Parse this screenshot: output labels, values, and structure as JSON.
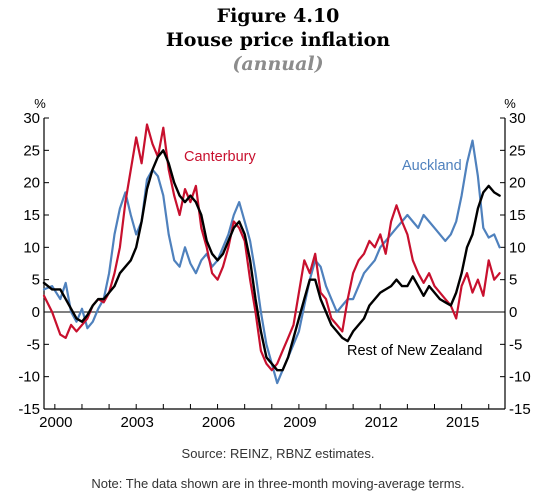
{
  "figure": {
    "number": "Figure 4.10",
    "title": "House price inflation",
    "subtitle": "(annual)"
  },
  "source": "Source: REINZ, RBNZ estimates.",
  "note": "Note: The data shown are in three-month moving-average terms.",
  "chart_data": {
    "type": "line",
    "title": "House price inflation",
    "subtitle": "(annual)",
    "ylabel_left": "%",
    "ylabel_right": "%",
    "ylim": [
      -15,
      30
    ],
    "yticks": [
      -15,
      -10,
      -5,
      0,
      5,
      10,
      15,
      20,
      25,
      30
    ],
    "xlim": [
      2000,
      2016.6
    ],
    "xticks": [
      2000,
      2003,
      2006,
      2009,
      2012,
      2015
    ],
    "xtick_labels": [
      "2000",
      "2003",
      "2006",
      "2009",
      "2012",
      "2015"
    ],
    "grid": false,
    "zero_line": true,
    "series": [
      {
        "name": "Auckland",
        "color": "#4f81bd",
        "x": [
          1999.6,
          1999.9,
          2000.2,
          2000.4,
          2000.6,
          2000.8,
          2001.0,
          2001.2,
          2001.4,
          2001.6,
          2001.8,
          2002.0,
          2002.2,
          2002.4,
          2002.6,
          2002.8,
          2003.0,
          2003.2,
          2003.4,
          2003.6,
          2003.8,
          2004.0,
          2004.2,
          2004.4,
          2004.6,
          2004.8,
          2005.0,
          2005.2,
          2005.4,
          2005.6,
          2005.8,
          2006.0,
          2006.2,
          2006.4,
          2006.6,
          2006.8,
          2007.0,
          2007.2,
          2007.4,
          2007.6,
          2007.8,
          2008.0,
          2008.2,
          2008.4,
          2008.6,
          2008.8,
          2009.0,
          2009.2,
          2009.4,
          2009.6,
          2009.8,
          2010.0,
          2010.2,
          2010.4,
          2010.6,
          2010.8,
          2011.0,
          2011.2,
          2011.4,
          2011.6,
          2011.8,
          2012.0,
          2012.2,
          2012.4,
          2012.6,
          2012.8,
          2013.0,
          2013.2,
          2013.4,
          2013.6,
          2013.8,
          2014.0,
          2014.2,
          2014.4,
          2014.6,
          2014.8,
          2015.0,
          2015.2,
          2015.4,
          2015.6,
          2015.8,
          2016.0,
          2016.2,
          2016.4
        ],
        "values": [
          3.5,
          4.0,
          2.0,
          4.5,
          0.0,
          -1.5,
          0.5,
          -2.5,
          -1.5,
          0.5,
          2.0,
          6.0,
          12.0,
          16.0,
          18.5,
          15.0,
          12.0,
          14.0,
          20.5,
          22.0,
          21.0,
          18.0,
          12.0,
          8.0,
          7.0,
          10.0,
          7.5,
          6.0,
          8.0,
          9.0,
          7.0,
          8.0,
          10.0,
          12.0,
          15.0,
          17.0,
          14.0,
          11.0,
          6.0,
          0.0,
          -5.0,
          -8.0,
          -11.0,
          -9.0,
          -7.0,
          -5.0,
          -3.0,
          1.0,
          5.0,
          8.0,
          7.0,
          4.0,
          2.0,
          0.0,
          1.0,
          2.0,
          2.0,
          4.0,
          6.0,
          7.0,
          8.0,
          10.0,
          11.0,
          12.0,
          13.0,
          14.0,
          15.0,
          14.0,
          13.0,
          15.0,
          14.0,
          13.0,
          12.0,
          11.0,
          12.0,
          14.0,
          18.0,
          23.0,
          26.5,
          21.0,
          13.0,
          11.5,
          12.0,
          10.0
        ]
      },
      {
        "name": "Canterbury",
        "color": "#c8102e",
        "x": [
          1999.6,
          1999.9,
          2000.2,
          2000.4,
          2000.6,
          2000.8,
          2001.0,
          2001.2,
          2001.4,
          2001.6,
          2001.8,
          2002.0,
          2002.2,
          2002.4,
          2002.6,
          2002.8,
          2003.0,
          2003.2,
          2003.4,
          2003.6,
          2003.8,
          2004.0,
          2004.2,
          2004.4,
          2004.6,
          2004.8,
          2005.0,
          2005.2,
          2005.4,
          2005.6,
          2005.8,
          2006.0,
          2006.2,
          2006.4,
          2006.6,
          2006.8,
          2007.0,
          2007.2,
          2007.4,
          2007.6,
          2007.8,
          2008.0,
          2008.2,
          2008.4,
          2008.6,
          2008.8,
          2009.0,
          2009.2,
          2009.4,
          2009.6,
          2009.8,
          2010.0,
          2010.2,
          2010.4,
          2010.6,
          2010.8,
          2011.0,
          2011.2,
          2011.4,
          2011.6,
          2011.8,
          2012.0,
          2012.2,
          2012.4,
          2012.6,
          2012.8,
          2013.0,
          2013.2,
          2013.4,
          2013.6,
          2013.8,
          2014.0,
          2014.2,
          2014.4,
          2014.6,
          2014.8,
          2015.0,
          2015.2,
          2015.4,
          2015.6,
          2015.8,
          2016.0,
          2016.2,
          2016.4
        ],
        "values": [
          2.5,
          0.0,
          -3.5,
          -4.0,
          -2.0,
          -3.0,
          -2.0,
          -1.0,
          1.0,
          2.0,
          1.5,
          3.0,
          6.0,
          10.0,
          17.0,
          22.0,
          27.0,
          23.0,
          29.0,
          26.0,
          24.0,
          28.5,
          22.0,
          18.0,
          15.0,
          19.0,
          17.0,
          19.5,
          13.0,
          10.0,
          6.0,
          5.0,
          7.0,
          10.0,
          14.0,
          13.0,
          11.0,
          5.0,
          0.0,
          -6.0,
          -8.0,
          -9.0,
          -8.0,
          -6.0,
          -4.0,
          -2.0,
          3.0,
          8.0,
          6.0,
          9.0,
          3.0,
          2.0,
          -1.0,
          -2.0,
          -3.0,
          2.0,
          6.0,
          8.0,
          9.0,
          11.0,
          10.0,
          12.0,
          9.0,
          14.0,
          16.5,
          14.0,
          12.0,
          8.0,
          6.0,
          4.5,
          6.0,
          4.0,
          3.0,
          2.0,
          1.0,
          -1.0,
          4.0,
          6.0,
          3.0,
          5.0,
          2.5,
          8.0,
          5.0,
          6.0
        ]
      },
      {
        "name": "Rest of New Zealand",
        "color": "#000000",
        "x": [
          1999.6,
          1999.9,
          2000.2,
          2000.4,
          2000.6,
          2000.8,
          2001.0,
          2001.2,
          2001.4,
          2001.6,
          2001.8,
          2002.0,
          2002.2,
          2002.4,
          2002.6,
          2002.8,
          2003.0,
          2003.2,
          2003.4,
          2003.6,
          2003.8,
          2004.0,
          2004.2,
          2004.4,
          2004.6,
          2004.8,
          2005.0,
          2005.2,
          2005.4,
          2005.6,
          2005.8,
          2006.0,
          2006.2,
          2006.4,
          2006.6,
          2006.8,
          2007.0,
          2007.2,
          2007.4,
          2007.6,
          2007.8,
          2008.0,
          2008.2,
          2008.4,
          2008.6,
          2008.8,
          2009.0,
          2009.2,
          2009.4,
          2009.6,
          2009.8,
          2010.0,
          2010.2,
          2010.4,
          2010.6,
          2010.8,
          2011.0,
          2011.2,
          2011.4,
          2011.6,
          2011.8,
          2012.0,
          2012.2,
          2012.4,
          2012.6,
          2012.8,
          2013.0,
          2013.2,
          2013.4,
          2013.6,
          2013.8,
          2014.0,
          2014.2,
          2014.4,
          2014.6,
          2014.8,
          2015.0,
          2015.2,
          2015.4,
          2015.6,
          2015.8,
          2016.0,
          2016.2,
          2016.4
        ],
        "values": [
          4.5,
          3.5,
          3.5,
          2.0,
          0.5,
          -1.0,
          -1.5,
          -0.5,
          1.0,
          2.0,
          2.0,
          3.0,
          4.0,
          6.0,
          7.0,
          8.0,
          10.0,
          14.0,
          19.0,
          22.0,
          24.0,
          25.0,
          23.0,
          20.0,
          18.0,
          17.0,
          18.0,
          17.0,
          15.0,
          11.0,
          9.0,
          8.0,
          9.0,
          11.0,
          13.0,
          14.0,
          12.0,
          8.0,
          2.0,
          -3.0,
          -7.0,
          -8.0,
          -9.0,
          -9.0,
          -7.0,
          -4.0,
          -1.0,
          2.0,
          5.0,
          5.0,
          2.0,
          0.0,
          -2.0,
          -3.0,
          -4.0,
          -4.5,
          -3.0,
          -2.0,
          -1.0,
          1.0,
          2.0,
          3.0,
          3.5,
          4.0,
          5.0,
          4.0,
          4.0,
          5.5,
          4.0,
          2.5,
          4.0,
          3.0,
          2.0,
          1.5,
          1.0,
          3.0,
          6.0,
          10.0,
          12.0,
          16.0,
          18.5,
          19.5,
          18.5,
          18.0
        ]
      }
    ],
    "labels": {
      "Canterbury": "Canterbury",
      "Auckland": "Auckland",
      "Rest of New Zealand": "Rest of New Zealand"
    }
  }
}
